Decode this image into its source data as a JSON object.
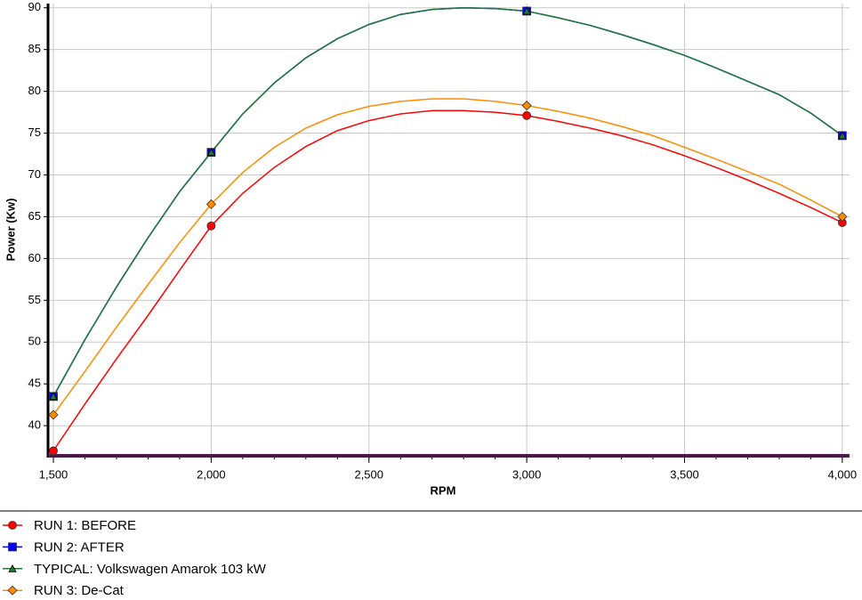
{
  "chart_data": {
    "type": "line",
    "x_label": "RPM",
    "y_label": "Power (Kw)",
    "x": [
      1500,
      1600,
      1700,
      1800,
      1900,
      2000,
      2100,
      2200,
      2300,
      2400,
      2500,
      2600,
      2700,
      2800,
      2900,
      3000,
      3100,
      3200,
      3300,
      3400,
      3500,
      3600,
      3700,
      3800,
      3900,
      4000
    ],
    "marker_x": [
      1500,
      2000,
      3000,
      4000
    ],
    "xlim": [
      1483,
      4023
    ],
    "xticks": [
      {
        "value": 1500,
        "label": "1,500"
      },
      {
        "value": 2000,
        "label": "2,000"
      },
      {
        "value": 2500,
        "label": "2,500"
      },
      {
        "value": 3000,
        "label": "3,000"
      },
      {
        "value": 3500,
        "label": "3,500"
      },
      {
        "value": 4000,
        "label": "4,000"
      }
    ],
    "ylim": [
      36.4,
      90.5
    ],
    "yticks": [
      40,
      45,
      50,
      55,
      60,
      65,
      70,
      75,
      80,
      85,
      90
    ],
    "grid": true,
    "series": [
      {
        "name": "RUN 1: BEFORE",
        "color": "#ff0000",
        "marker": "circle",
        "values": [
          37.0,
          42.6,
          48.0,
          53.2,
          58.6,
          63.9,
          67.8,
          70.9,
          73.4,
          75.3,
          76.5,
          77.3,
          77.7,
          77.7,
          77.5,
          77.1,
          76.4,
          75.6,
          74.7,
          73.6,
          72.3,
          70.9,
          69.4,
          67.8,
          66.1,
          64.3
        ]
      },
      {
        "name": "RUN 2: AFTER",
        "color": "#0000ff",
        "marker": "square",
        "values": [
          43.5,
          50.3,
          56.6,
          62.5,
          68.0,
          72.7,
          77.3,
          81.0,
          84.0,
          86.3,
          88.0,
          89.2,
          89.8,
          90.0,
          89.9,
          89.6,
          88.8,
          87.9,
          86.8,
          85.6,
          84.3,
          82.8,
          81.2,
          79.6,
          77.4,
          74.7
        ]
      },
      {
        "name": "TYPICAL: Volkswagen Amarok 103 kW",
        "color": "#1e7b32",
        "marker": "triangle",
        "values": [
          43.5,
          50.3,
          56.6,
          62.5,
          68.0,
          72.7,
          77.3,
          81.0,
          84.0,
          86.3,
          88.0,
          89.2,
          89.8,
          90.0,
          89.9,
          89.6,
          88.8,
          87.9,
          86.8,
          85.6,
          84.3,
          82.8,
          81.2,
          79.6,
          77.4,
          74.7
        ]
      },
      {
        "name": "RUN 3: De-Cat",
        "color": "#ff8c00",
        "marker": "diamond",
        "values": [
          41.3,
          46.5,
          51.8,
          56.9,
          61.9,
          66.5,
          70.3,
          73.3,
          75.6,
          77.2,
          78.2,
          78.8,
          79.1,
          79.1,
          78.8,
          78.3,
          77.6,
          76.8,
          75.8,
          74.7,
          73.3,
          71.9,
          70.4,
          68.9,
          67.0,
          65.0
        ]
      }
    ]
  }
}
